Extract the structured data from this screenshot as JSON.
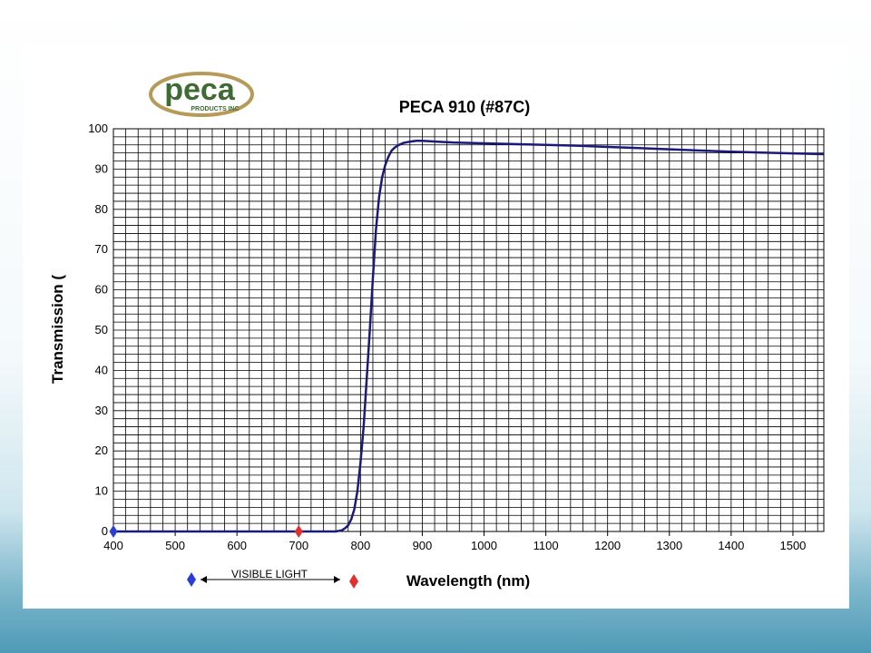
{
  "logo": {
    "name": "peca",
    "sub": "PRODUCTS INC",
    "colors": {
      "text": "#3f6b34",
      "ring": "#b79a57"
    }
  },
  "chart_data": {
    "type": "line",
    "title": "PECA 910 (#87C)",
    "xlabel": "Wavelength (nm)",
    "ylabel": "Transmission (",
    "xlim": [
      400,
      1550
    ],
    "ylim": [
      0,
      100
    ],
    "x_ticks": [
      400,
      500,
      600,
      700,
      800,
      900,
      1000,
      1100,
      1200,
      1300,
      1400,
      1500
    ],
    "y_ticks": [
      0,
      10,
      20,
      30,
      40,
      50,
      60,
      70,
      80,
      90,
      100
    ],
    "x_minor_step": 20,
    "y_minor_step": 2,
    "grid": true,
    "line_color": "#1a1a7a",
    "series": [
      {
        "x": [
          400,
          500,
          600,
          700,
          760,
          770,
          775,
          780,
          785,
          790,
          795,
          800,
          805,
          810,
          815,
          820,
          825,
          830,
          835,
          840,
          845,
          850,
          855,
          860,
          865,
          870,
          880,
          890,
          900,
          925,
          950,
          1000,
          1050,
          1100,
          1150,
          1200,
          1250,
          1300,
          1350,
          1400,
          1450,
          1500,
          1550
        ],
        "y": [
          0,
          0,
          0,
          0,
          0,
          0.3,
          0.8,
          1.5,
          3,
          5.5,
          10,
          17,
          26,
          38,
          50,
          63,
          75,
          83,
          88,
          91,
          93,
          94.5,
          95.3,
          95.8,
          96.2,
          96.5,
          96.8,
          97,
          97,
          96.8,
          96.6,
          96.4,
          96.2,
          96,
          95.8,
          95.5,
          95.2,
          94.9,
          94.6,
          94.3,
          94.1,
          93.9,
          93.7
        ]
      }
    ],
    "markers": [
      {
        "x": 400,
        "color": "#2a3fd8"
      },
      {
        "x": 700,
        "color": "#e03030"
      }
    ],
    "annotation": {
      "text": "VISIBLE LIGHT",
      "colors": {
        "start": "#2a3fd8",
        "end": "#e03030"
      }
    }
  }
}
